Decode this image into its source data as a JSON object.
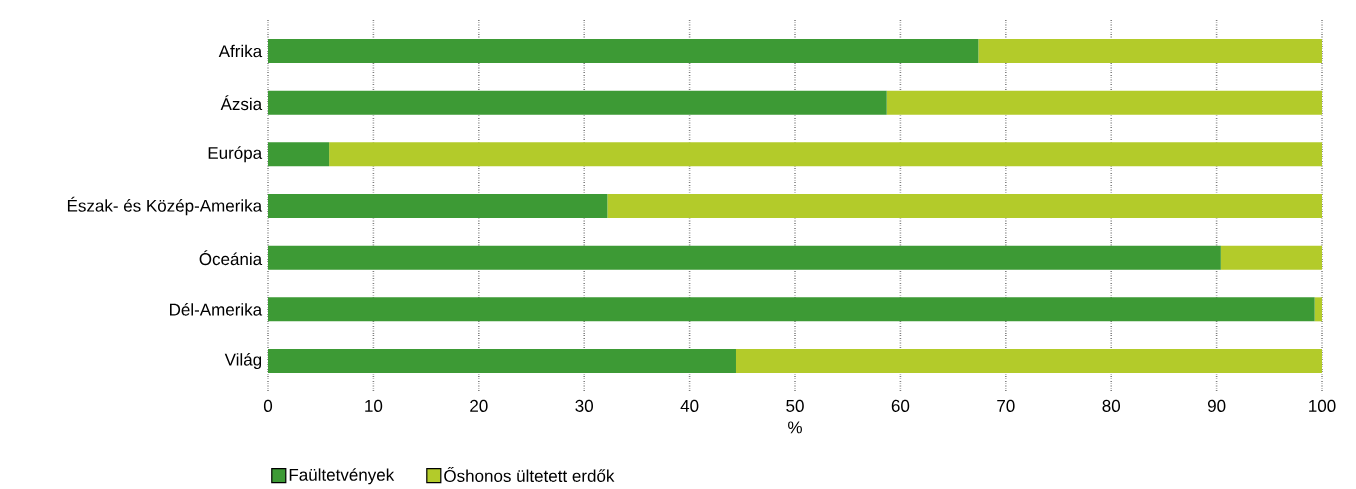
{
  "chart_data": {
    "type": "bar",
    "orientation": "horizontal",
    "stacked": true,
    "categories": [
      "Afrika",
      "Ázsia",
      "Európa",
      "Észak- és Közép-Amerika",
      "Óceánia",
      "Dél-Amerika",
      "Világ"
    ],
    "series": [
      {
        "name": "Faültetvények",
        "color": "#3d9a35",
        "values": [
          67.4,
          58.7,
          5.8,
          32.2,
          90.4,
          99.3,
          44.4
        ]
      },
      {
        "name": "Őshonos ültetett erdők",
        "color": "#b3cb2a",
        "values": [
          32.6,
          41.3,
          94.2,
          67.8,
          9.6,
          0.7,
          55.6
        ]
      }
    ],
    "xlabel": "%",
    "xlim": [
      0,
      100
    ],
    "xticks": [
      0,
      10,
      20,
      30,
      40,
      50,
      60,
      70,
      80,
      90,
      100
    ],
    "grid": "x",
    "legend": "bottom left"
  }
}
